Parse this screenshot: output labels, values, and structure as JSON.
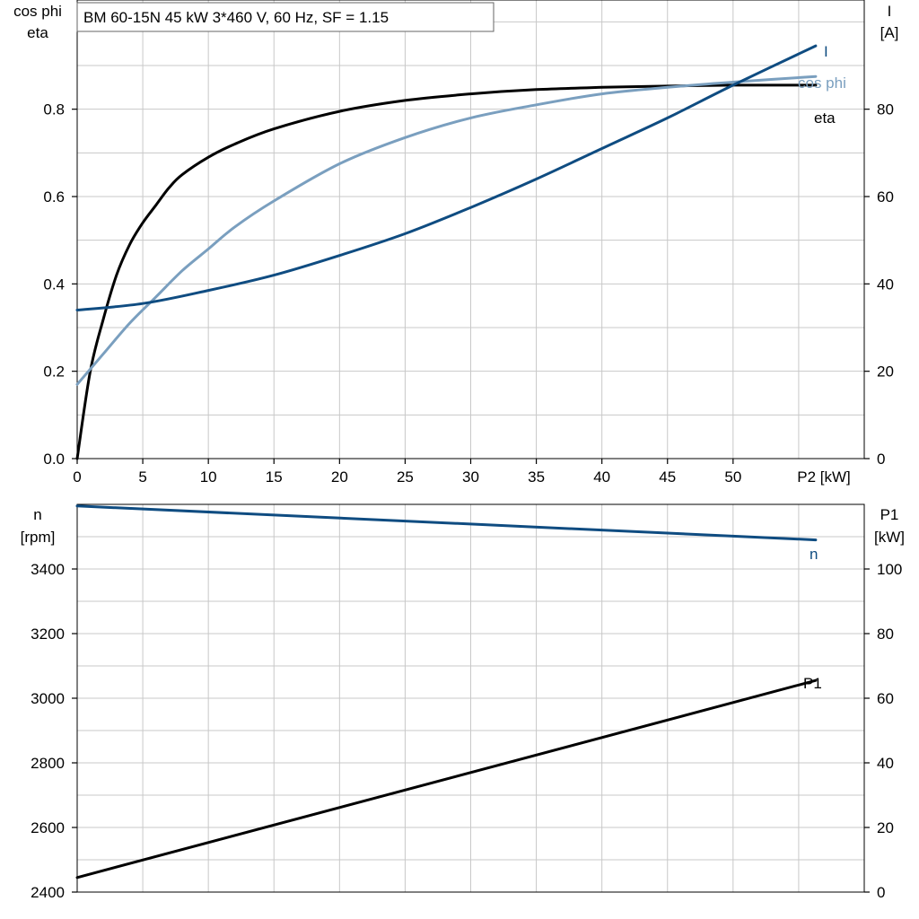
{
  "title": "BM 60-15N   45 kW   3*460 V, 60 Hz, SF = 1.15",
  "colors": {
    "dark_blue": "#0f4c81",
    "light_blue": "#7a9fbf",
    "black": "#000000",
    "grid": "#c8c8c8"
  },
  "chart_data": [
    {
      "type": "line",
      "id": "top",
      "x_label": "P2 [kW]",
      "xlim": [
        0,
        60
      ],
      "x_ticks": [
        "0",
        "5",
        "10",
        "15",
        "20",
        "25",
        "30",
        "35",
        "40",
        "45",
        "50"
      ],
      "left_axis": {
        "label_lines": [
          "cos phi",
          "eta"
        ],
        "ylim": [
          0,
          1.05
        ],
        "ticks": [
          "0.0",
          "0.2",
          "0.4",
          "0.6",
          "0.8"
        ],
        "tick_values": [
          0,
          0.2,
          0.4,
          0.6,
          0.8
        ]
      },
      "right_axis": {
        "label_lines": [
          "I",
          "[A]"
        ],
        "ylim": [
          0,
          105
        ],
        "ticks": [
          "0",
          "20",
          "40",
          "60",
          "80"
        ],
        "tick_values": [
          0,
          20,
          40,
          60,
          80
        ]
      },
      "grid": true,
      "series": [
        {
          "name": "eta",
          "axis": "left",
          "color": "#000000",
          "x": [
            0,
            1,
            2,
            3,
            4,
            5,
            6,
            7,
            8,
            10,
            12,
            15,
            20,
            25,
            30,
            35,
            40,
            45,
            50,
            56.3
          ],
          "y": [
            0.0,
            0.2,
            0.32,
            0.42,
            0.49,
            0.54,
            0.58,
            0.62,
            0.65,
            0.69,
            0.72,
            0.755,
            0.795,
            0.82,
            0.835,
            0.845,
            0.85,
            0.853,
            0.855,
            0.855
          ]
        },
        {
          "name": "cos phi",
          "axis": "left",
          "color": "#7a9fbf",
          "x": [
            0,
            2,
            4,
            6,
            8,
            10,
            12,
            15,
            20,
            25,
            30,
            35,
            40,
            45,
            50,
            56.3
          ],
          "y": [
            0.17,
            0.24,
            0.31,
            0.37,
            0.43,
            0.48,
            0.53,
            0.59,
            0.675,
            0.735,
            0.78,
            0.81,
            0.835,
            0.85,
            0.862,
            0.875
          ]
        },
        {
          "name": "I",
          "axis": "right",
          "color": "#0f4c81",
          "x": [
            0,
            5,
            10,
            15,
            20,
            25,
            30,
            35,
            40,
            45,
            50,
            56.3
          ],
          "y": [
            34,
            35.5,
            38.5,
            42,
            46.5,
            51.5,
            57.5,
            64,
            71,
            78,
            85.5,
            94.5
          ]
        }
      ]
    },
    {
      "type": "line",
      "id": "bottom",
      "xlim": [
        0,
        60
      ],
      "left_axis": {
        "label_lines": [
          "n",
          "[rpm]"
        ],
        "ylim": [
          2400,
          3600
        ],
        "ticks": [
          "2400",
          "2600",
          "2800",
          "3000",
          "3200",
          "3400"
        ],
        "tick_values": [
          2400,
          2600,
          2800,
          3000,
          3200,
          3400
        ]
      },
      "right_axis": {
        "label_lines": [
          "P1",
          "[kW]"
        ],
        "ylim": [
          0,
          120
        ],
        "ticks": [
          "0",
          "20",
          "40",
          "60",
          "80",
          "100"
        ],
        "tick_values": [
          0,
          20,
          40,
          60,
          80,
          100
        ]
      },
      "grid": true,
      "series": [
        {
          "name": "n",
          "axis": "left",
          "color": "#0f4c81",
          "x": [
            0,
            56.3
          ],
          "y": [
            3595,
            3490
          ]
        },
        {
          "name": "P1",
          "axis": "right",
          "color": "#000000",
          "x": [
            0,
            56.3
          ],
          "y": [
            4.5,
            65.5
          ]
        }
      ]
    }
  ]
}
